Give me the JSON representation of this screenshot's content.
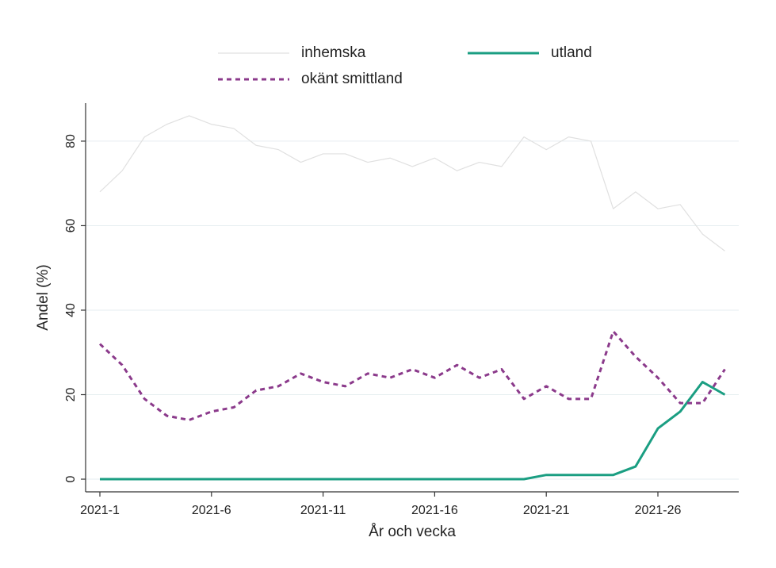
{
  "chart_data": {
    "type": "line",
    "x_label": "År och vecka",
    "y_label": "Andel (%)",
    "categories": [
      "2021-1",
      null,
      null,
      null,
      null,
      "2021-6",
      null,
      null,
      null,
      null,
      "2021-11",
      null,
      null,
      null,
      null,
      "2021-16",
      null,
      null,
      null,
      null,
      "2021-21",
      null,
      null,
      null,
      null,
      "2021-26",
      null,
      null,
      null
    ],
    "series": [
      {
        "name": "inhemska",
        "color": "#e0e0e0",
        "dashed": false,
        "width": 1.2,
        "values": [
          68,
          73,
          81,
          84,
          86,
          84,
          83,
          79,
          78,
          75,
          77,
          77,
          75,
          76,
          74,
          76,
          73,
          75,
          74,
          81,
          78,
          81,
          80,
          64,
          68,
          64,
          65,
          58,
          54
        ]
      },
      {
        "name": "utland",
        "color": "#1a9e82",
        "dashed": false,
        "width": 3,
        "values": [
          0,
          0,
          0,
          0,
          0,
          0,
          0,
          0,
          0,
          0,
          0,
          0,
          0,
          0,
          0,
          0,
          0,
          0,
          0,
          0,
          1,
          1,
          1,
          1,
          3,
          12,
          16,
          23,
          20
        ]
      },
      {
        "name": "okänt smittland",
        "color": "#8b3a8b",
        "dashed": true,
        "width": 3,
        "values": [
          32,
          27,
          19,
          15,
          14,
          16,
          17,
          21,
          22,
          25,
          23,
          22,
          25,
          24,
          26,
          24,
          27,
          24,
          26,
          19,
          22,
          19,
          19,
          35,
          29,
          24,
          18,
          18,
          26
        ]
      }
    ],
    "ylim": [
      -3,
      89
    ],
    "yticks": [
      0,
      20,
      40,
      60,
      80
    ],
    "grid": true
  }
}
